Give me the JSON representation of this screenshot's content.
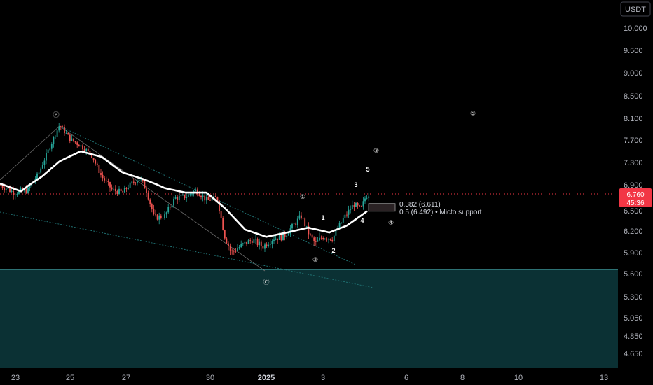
{
  "chart_data": {
    "type": "candlestick",
    "currency": "USDT",
    "y_ticks": [
      "10.000",
      "9.500",
      "9.000",
      "8.500",
      "8.100",
      "7.700",
      "7.300",
      "6.900",
      "6.500",
      "6.200",
      "5.900",
      "5.600",
      "5.300",
      "5.050",
      "4.850",
      "4.650"
    ],
    "x_ticks": [
      {
        "label": "23",
        "bold": false
      },
      {
        "label": "25",
        "bold": false
      },
      {
        "label": "27",
        "bold": false
      },
      {
        "label": "30",
        "bold": false
      },
      {
        "label": "2025",
        "bold": true
      },
      {
        "label": "3",
        "bold": false
      },
      {
        "label": "6",
        "bold": false
      },
      {
        "label": "8",
        "bold": false
      },
      {
        "label": "10",
        "bold": false
      },
      {
        "label": "13",
        "bold": false
      }
    ],
    "last_price": "6.760",
    "countdown": "45:36",
    "fib_levels": [
      {
        "label": "0.382 (6.611)",
        "value": 6.611
      },
      {
        "label": "0.5 (6.492) • Micto support",
        "value": 6.492
      }
    ],
    "support_zone_top": 5.66,
    "wave_labels": [
      {
        "text": "Ⓑ",
        "style": "circle"
      },
      {
        "text": "Ⓒ",
        "style": "circle"
      },
      {
        "text": "①",
        "style": "circle"
      },
      {
        "text": "②",
        "style": "circle"
      },
      {
        "text": "③",
        "style": "circle"
      },
      {
        "text": "④",
        "style": "circle"
      },
      {
        "text": "⑤",
        "style": "circle"
      },
      {
        "text": "1",
        "style": "plain"
      },
      {
        "text": "2",
        "style": "plain"
      },
      {
        "text": "3",
        "style": "plain"
      },
      {
        "text": "4",
        "style": "plain"
      },
      {
        "text": "5",
        "style": "plain"
      }
    ],
    "price_path": [
      [
        0,
        6.9
      ],
      [
        20,
        6.78
      ],
      [
        40,
        6.82
      ],
      [
        55,
        7.1
      ],
      [
        70,
        7.55
      ],
      [
        85,
        7.98
      ],
      [
        100,
        7.72
      ],
      [
        115,
        7.6
      ],
      [
        130,
        7.45
      ],
      [
        145,
        7.05
      ],
      [
        160,
        6.82
      ],
      [
        175,
        6.78
      ],
      [
        185,
        6.9
      ],
      [
        200,
        7.02
      ],
      [
        210,
        6.78
      ],
      [
        220,
        6.4
      ],
      [
        235,
        6.42
      ],
      [
        250,
        6.7
      ],
      [
        265,
        6.72
      ],
      [
        280,
        6.82
      ],
      [
        295,
        6.66
      ],
      [
        310,
        6.7
      ],
      [
        320,
        6.15
      ],
      [
        330,
        5.9
      ],
      [
        345,
        6.0
      ],
      [
        360,
        6.08
      ],
      [
        375,
        5.98
      ],
      [
        390,
        6.1
      ],
      [
        405,
        6.12
      ],
      [
        420,
        6.3
      ],
      [
        430,
        6.42
      ],
      [
        440,
        6.18
      ],
      [
        450,
        6.02
      ],
      [
        460,
        6.12
      ],
      [
        475,
        6.1
      ],
      [
        490,
        6.38
      ],
      [
        505,
        6.6
      ],
      [
        515,
        6.52
      ],
      [
        522,
        6.72
      ],
      [
        527,
        6.76
      ]
    ],
    "moving_average": [
      [
        0,
        6.92
      ],
      [
        30,
        6.8
      ],
      [
        60,
        7.05
      ],
      [
        85,
        7.32
      ],
      [
        115,
        7.5
      ],
      [
        145,
        7.4
      ],
      [
        175,
        7.12
      ],
      [
        205,
        7.0
      ],
      [
        235,
        6.85
      ],
      [
        265,
        6.78
      ],
      [
        295,
        6.78
      ],
      [
        320,
        6.55
      ],
      [
        350,
        6.22
      ],
      [
        380,
        6.12
      ],
      [
        410,
        6.18
      ],
      [
        440,
        6.25
      ],
      [
        470,
        6.18
      ],
      [
        495,
        6.28
      ],
      [
        525,
        6.5
      ]
    ]
  }
}
